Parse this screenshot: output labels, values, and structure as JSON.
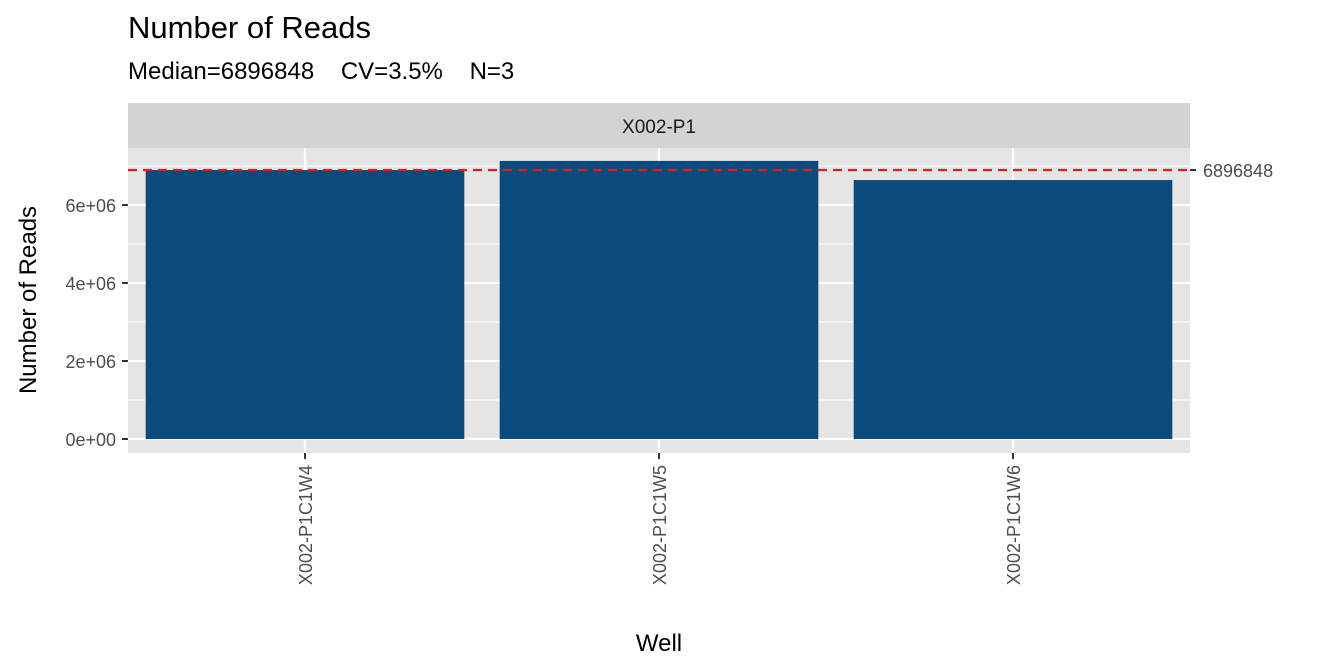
{
  "chart_data": {
    "type": "bar",
    "title": "Number of Reads",
    "subtitle": "Median=6896848    CV=3.5%    N=3",
    "facet": "X002-P1",
    "xlabel": "Well",
    "ylabel": "Number of Reads",
    "categories": [
      "X002-P1C1W4",
      "X002-P1C1W5",
      "X002-P1C1W6"
    ],
    "values": [
      6896848,
      7130000,
      6640000
    ],
    "ylim": [
      -350000,
      7600000
    ],
    "yticks": [
      0,
      2000000,
      4000000,
      6000000
    ],
    "ytick_labels": [
      "0e+00",
      "2e+06",
      "4e+06",
      "6e+06"
    ],
    "reference_line": {
      "value": 6896848,
      "label": "6896848",
      "style": "dashed",
      "color": "#e41a1c"
    },
    "bar_color": "#0b4a7b",
    "panel_background": "#e5e5e5",
    "strip_background": "#d3d3d3",
    "grid": true,
    "legend": "none"
  }
}
